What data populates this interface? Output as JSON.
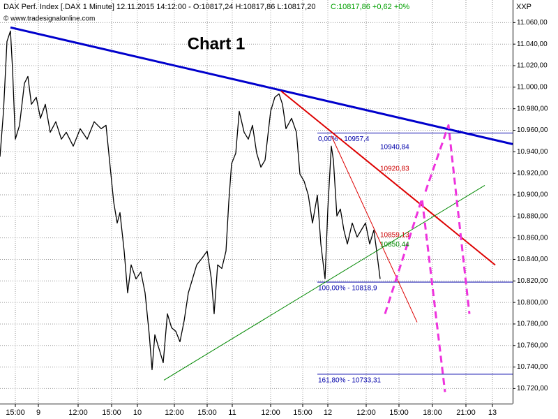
{
  "chart_data": {
    "type": "line",
    "header": "DAX Perf. Index [.DAX  1 Minute] 12.11.2015 14:12:00 - O:10817,24 H:10817,86 L:10817,20",
    "header_change": "C:10817,86 +0,62 +0%",
    "watermark": "© www.tradesignalonline.com",
    "symbol": "XXP",
    "title": "Chart 1",
    "grid": true,
    "xlim": [
      0,
      735
    ],
    "ylim": [
      10706,
      11081
    ],
    "yticks": [
      {
        "value": 10720,
        "label": "10.720,00"
      },
      {
        "value": 10740,
        "label": "10.740,00"
      },
      {
        "value": 10760,
        "label": "10.760,00"
      },
      {
        "value": 10780,
        "label": "10.780,00"
      },
      {
        "value": 10800,
        "label": "10.800,00"
      },
      {
        "value": 10820,
        "label": "10.820,00"
      },
      {
        "value": 10840,
        "label": "10.840,00"
      },
      {
        "value": 10860,
        "label": "10.860,00"
      },
      {
        "value": 10880,
        "label": "10.880,00"
      },
      {
        "value": 10900,
        "label": "10.900,00"
      },
      {
        "value": 10920,
        "label": "10.920,00"
      },
      {
        "value": 10940,
        "label": "10.940,00"
      },
      {
        "value": 10960,
        "label": "10.960,00"
      },
      {
        "value": 10980,
        "label": "10.980,00"
      },
      {
        "value": 11000,
        "label": "11.000,00"
      },
      {
        "value": 11020,
        "label": "11.020,00"
      },
      {
        "value": 11040,
        "label": "11.040,00"
      },
      {
        "value": 11060,
        "label": "11.060,00"
      }
    ],
    "xticks": [
      {
        "value": 22,
        "label": "15:00"
      },
      {
        "value": 55,
        "label": "9"
      },
      {
        "value": 112,
        "label": "12:00"
      },
      {
        "value": 160,
        "label": "15:00"
      },
      {
        "value": 197,
        "label": "10"
      },
      {
        "value": 250,
        "label": "12:00"
      },
      {
        "value": 297,
        "label": "15:00"
      },
      {
        "value": 333,
        "label": "11"
      },
      {
        "value": 388,
        "label": "12:00"
      },
      {
        "value": 434,
        "label": "15:00"
      },
      {
        "value": 470,
        "label": "12"
      },
      {
        "value": 525,
        "label": "12:00"
      },
      {
        "value": 572,
        "label": "15:00"
      },
      {
        "value": 620,
        "label": "18:00"
      },
      {
        "value": 668,
        "label": "21:00"
      },
      {
        "value": 706,
        "label": "13"
      }
    ],
    "series": [
      {
        "color": "#000000",
        "x": [
          0,
          5,
          10,
          15,
          18,
          22,
          28,
          35,
          40,
          45,
          52,
          58,
          65,
          72,
          80,
          88,
          95,
          105,
          115,
          125,
          135,
          145,
          152,
          158,
          163,
          168,
          172,
          178,
          183,
          188,
          195,
          202,
          208,
          214,
          218,
          222,
          228,
          234,
          240,
          246,
          252,
          258,
          264,
          270,
          276,
          282,
          290,
          297,
          303,
          307,
          312,
          318,
          324,
          328,
          332,
          338,
          343,
          350,
          356,
          362,
          368,
          374,
          380,
          388,
          394,
          400,
          405,
          410,
          418,
          425,
          430,
          436,
          442,
          448,
          455,
          460,
          466,
          470,
          475,
          478,
          483,
          488,
          493,
          498,
          505,
          512,
          518,
          524,
          530,
          536,
          540,
          545
        ],
        "values": [
          10935.4,
          10977.6,
          11042.5,
          11052.2,
          11016.5,
          10951.7,
          10964.6,
          11003.6,
          11010,
          10984.1,
          10990.6,
          10971.1,
          10984.1,
          10958.1,
          10967.9,
          10951.7,
          10958.1,
          10945.2,
          10961.4,
          10951.7,
          10967.9,
          10961.4,
          10964.6,
          10925.7,
          10893.3,
          10873.8,
          10883.5,
          10847.8,
          10808.9,
          10834.9,
          10821.9,
          10828.4,
          10808.9,
          10770,
          10737.5,
          10770,
          10757,
          10744,
          10789.5,
          10776.5,
          10773.2,
          10763.5,
          10783,
          10808.9,
          10821.9,
          10834.9,
          10841.4,
          10847.8,
          10821.9,
          10789.5,
          10834.9,
          10831.6,
          10847.8,
          10893.3,
          10928.9,
          10938.7,
          10977.6,
          10958.1,
          10951.7,
          10964.6,
          10938.7,
          10925.7,
          10932.2,
          10977.6,
          10990.6,
          10993.8,
          10984.1,
          10961.4,
          10971.1,
          10958.1,
          10919.2,
          10912.7,
          10899.7,
          10873.8,
          10899.7,
          10854.3,
          10821.9,
          10886.8,
          10945.2,
          10932.2,
          10880.3,
          10886.8,
          10867.3,
          10854.3,
          10873.8,
          10860.8,
          10867.3,
          10873.8,
          10854.3,
          10867.3,
          10847.8,
          10821.9
        ]
      }
    ],
    "trendlines": [
      {
        "color": "#0000cc",
        "width": 3,
        "dashed": false,
        "x": [
          15,
          735
        ],
        "values": [
          11055.5,
          10947.1
        ]
      },
      {
        "color": "#dd0000",
        "width": 2,
        "dashed": false,
        "x": [
          403,
          710
        ],
        "values": [
          10996.4,
          10834.8
        ]
      },
      {
        "color": "#dd0000",
        "width": 1,
        "dashed": false,
        "x": [
          475,
          598
        ],
        "values": [
          10954.9,
          10781.6
        ]
      },
      {
        "color": "#008800",
        "width": 1,
        "dashed": false,
        "x": [
          235,
          695
        ],
        "values": [
          10727.8,
          10908.8
        ]
      },
      {
        "color": "#ee33dd",
        "width": 3,
        "dashed": true,
        "x": [
          552,
          605,
          638
        ],
        "values": [
          10789.4,
          10896.5,
          10716.8
        ]
      },
      {
        "color": "#ee33dd",
        "width": 3,
        "dashed": true,
        "x": [
          610,
          643,
          673
        ],
        "values": [
          10903.0,
          10964.6,
          10789.4
        ]
      }
    ],
    "levels": [
      {
        "value": 10957.4,
        "label": "0,00% - 10957,4",
        "x": [
          455,
          735
        ],
        "color": "#0000aa"
      },
      {
        "value": 10818.9,
        "label": "100,00% - 10818,9",
        "x": [
          455,
          735
        ],
        "color": "#0000aa"
      },
      {
        "value": 10733.31,
        "label": "161,80% - 10733,31",
        "x": [
          455,
          735
        ],
        "color": "#0000aa"
      }
    ],
    "point_labels": [
      {
        "value": 10940.84,
        "label": "10940,84",
        "x": 545,
        "color": "#0000aa"
      },
      {
        "value": 10920.83,
        "label": "10920,83",
        "x": 545,
        "color": "#cc0000"
      },
      {
        "value": 10859.13,
        "label": "10859,13",
        "x": 545,
        "color": "#cc0000"
      },
      {
        "value": 10850.44,
        "label": "10850,44",
        "x": 545,
        "color": "#008800"
      }
    ]
  }
}
